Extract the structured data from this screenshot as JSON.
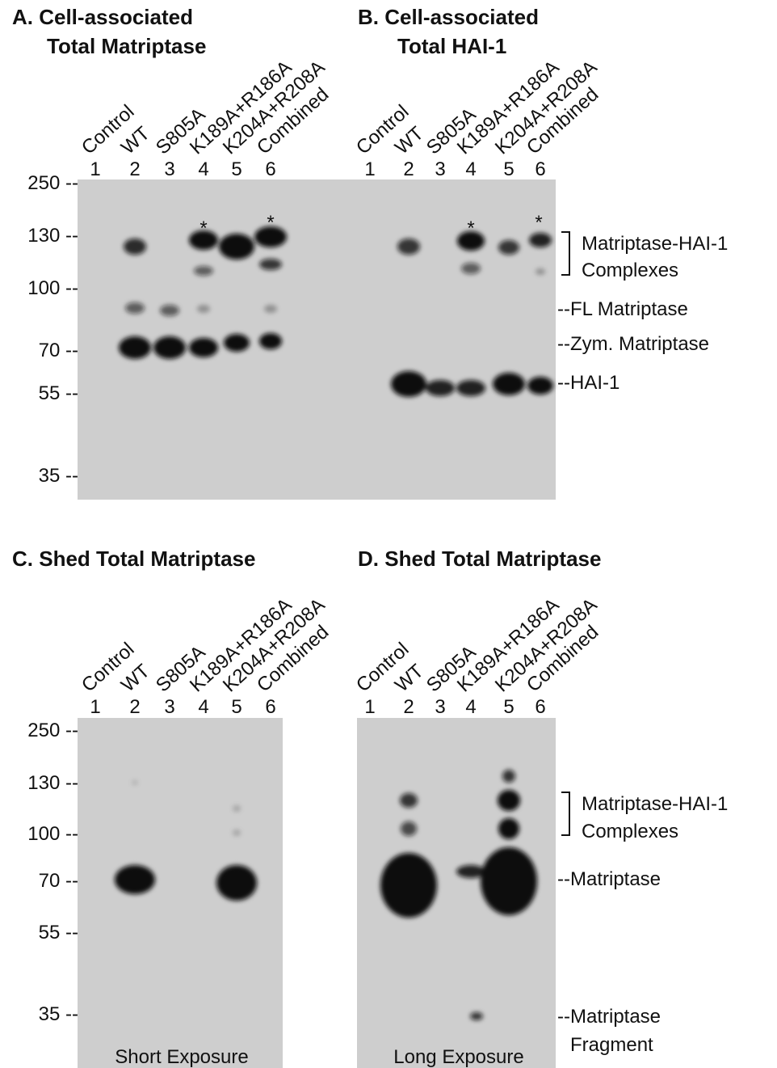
{
  "panels": [
    {
      "title": [
        "A.  Cell-associated",
        "Total Matriptase"
      ],
      "lanes": [
        "Control",
        "WT",
        "S805A",
        "K189A+R186A",
        "K204A+R208A",
        "Combined"
      ],
      "lane_numbers": [
        "1",
        "2",
        "3",
        "4",
        "5",
        "6"
      ],
      "markers": [
        "250 --",
        "130 --",
        "100 --",
        "70 --",
        "55 --",
        "35 --"
      ],
      "asterisks": [
        "*",
        "*"
      ]
    },
    {
      "title": [
        "B.  Cell-associated",
        "Total HAI-1"
      ],
      "lanes": [
        "Control",
        "WT",
        "S805A",
        "K189A+R186A",
        "K204A+R208A",
        "Combined"
      ],
      "lane_numbers": [
        "1",
        "2",
        "3",
        "4",
        "5",
        "6"
      ],
      "asterisks": [
        "*",
        "*"
      ],
      "annotations": [
        "Matriptase-HAI-1",
        "Complexes",
        "--FL Matriptase",
        "--Zym. Matriptase",
        "--HAI-1"
      ]
    },
    {
      "title": [
        "C.  Shed Total Matriptase"
      ],
      "lanes": [
        "Control",
        "WT",
        "S805A",
        "K189A+R186A",
        "K204A+R208A",
        "Combined"
      ],
      "lane_numbers": [
        "1",
        "2",
        "3",
        "4",
        "5",
        "6"
      ],
      "markers": [
        "250 --",
        "130 --",
        "100 --",
        "70 --",
        "55 --",
        "35 --"
      ],
      "exposure": "Short Exposure"
    },
    {
      "title": [
        "D.  Shed Total Matriptase"
      ],
      "lanes": [
        "Control",
        "WT",
        "S805A",
        "K189A+R186A",
        "K204A+R208A",
        "Combined"
      ],
      "lane_numbers": [
        "1",
        "2",
        "3",
        "4",
        "5",
        "6"
      ],
      "annotations": [
        "Matriptase-HAI-1",
        "Complexes",
        "--Matriptase",
        "--Matriptase",
        "Fragment"
      ],
      "exposure": "Long Exposure"
    }
  ]
}
